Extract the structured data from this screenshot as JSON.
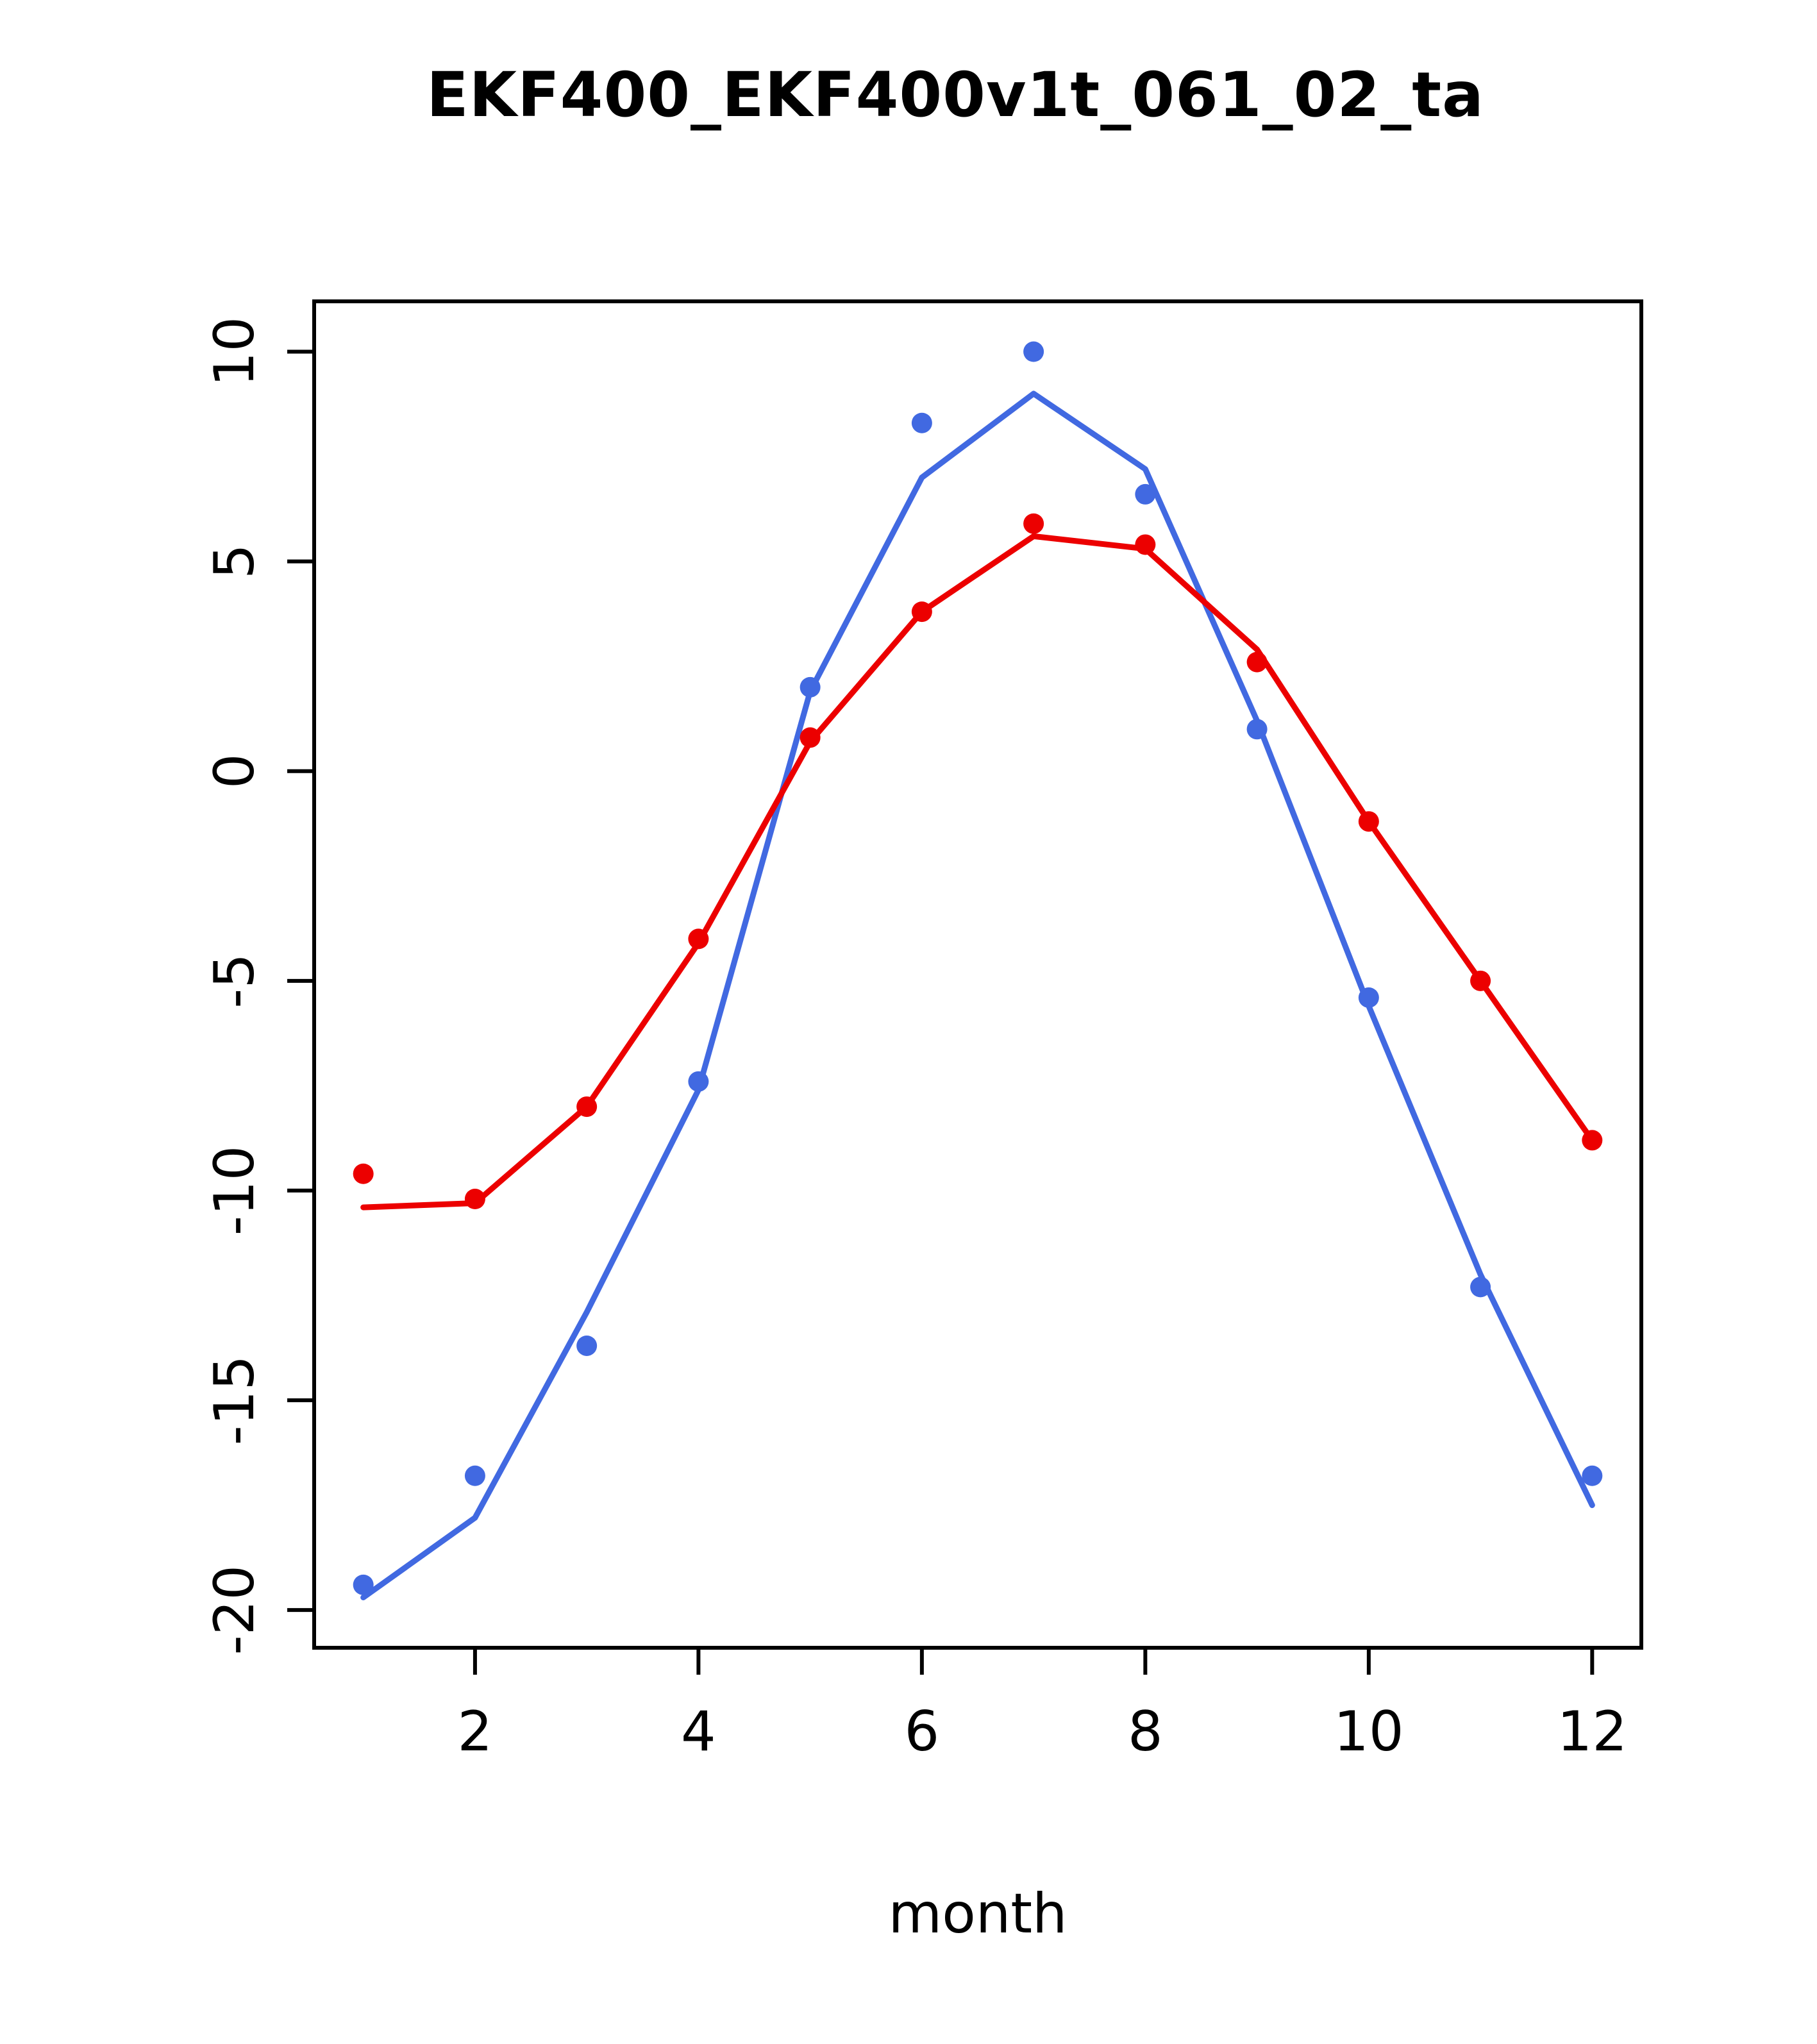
{
  "chart_data": {
    "type": "line",
    "title": "EKF400_EKF400v1t_061_02_ta",
    "xlabel": "month",
    "ylabel": "",
    "x": [
      1,
      2,
      3,
      4,
      5,
      6,
      7,
      8,
      9,
      10,
      11,
      12
    ],
    "xticks": [
      2,
      4,
      6,
      8,
      10,
      12
    ],
    "yticks": [
      10,
      5,
      0,
      -5,
      -10,
      -15,
      -20
    ],
    "xlim": [
      0.56,
      12.44
    ],
    "ylim": [
      -20.9,
      11.2
    ],
    "grid": false,
    "legend": "none",
    "colors": {
      "blue_series": "#4169E1",
      "red_series": "#EC0000",
      "axis": "#000000",
      "background": "#FFFFFF"
    },
    "series": [
      {
        "name": "blue-line",
        "style": "line",
        "color": "#4169E1",
        "values": [
          -19.7,
          -17.8,
          -12.9,
          -7.6,
          1.9,
          7.0,
          9.0,
          7.2,
          1.2,
          -5.6,
          -12.0,
          -17.5
        ]
      },
      {
        "name": "red-line",
        "style": "line",
        "color": "#EC0000",
        "values": [
          -10.4,
          -10.3,
          -8.0,
          -4.1,
          0.7,
          3.8,
          5.6,
          5.3,
          2.9,
          -1.2,
          -5.0,
          -8.8
        ]
      },
      {
        "name": "blue-points",
        "style": "scatter",
        "color": "#4169E1",
        "values": [
          -19.4,
          -16.8,
          -13.7,
          -7.4,
          2.0,
          8.3,
          10.0,
          6.6,
          1.0,
          -5.4,
          -12.3,
          -16.8
        ]
      },
      {
        "name": "red-points",
        "style": "scatter",
        "color": "#EC0000",
        "values": [
          -9.6,
          -10.2,
          -8.0,
          -4.0,
          0.8,
          3.8,
          5.9,
          5.4,
          2.6,
          -1.2,
          -5.0,
          -8.8
        ]
      }
    ]
  }
}
